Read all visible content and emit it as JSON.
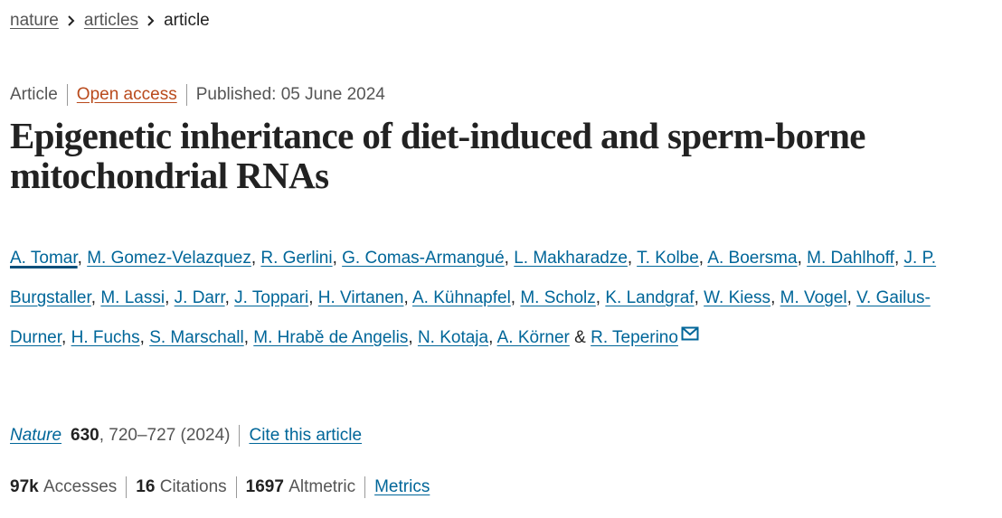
{
  "breadcrumb": [
    "nature",
    "articles",
    "article"
  ],
  "meta": {
    "type": "Article",
    "access": "Open access",
    "published": "Published: 05 June 2024"
  },
  "title": "Epigenetic inheritance of diet-induced and sperm-borne mitochondrial RNAs",
  "authors": {
    "names": [
      "A. Tomar",
      "M. Gomez-Velazquez",
      "R. Gerlini",
      "G. Comas-Armangué",
      "L. Makharadze",
      "T. Kolbe",
      "A. Boersma",
      "M. Dahlhoff",
      "J. P. Burgstaller",
      "M. Lassi",
      "J. Darr",
      "J. Toppari",
      "H. Virtanen",
      "A. Kühnapfel",
      "M. Scholz",
      "K. Landgraf",
      "W. Kiess",
      "M. Vogel",
      "V. Gailus-Durner",
      "H. Fuchs",
      "S. Marschall",
      "M. Hrabě de Angelis",
      "N. Kotaja",
      "A. Körner",
      "R. Teperino"
    ],
    "separator": ",",
    "conjunction": "&"
  },
  "citation": {
    "journal": "Nature",
    "volume": "630",
    "details": ", 720–727 (2024)",
    "cite": "Cite this article"
  },
  "metrics": {
    "accesses": "97k",
    "accesses_label": "Accesses",
    "citations": "16",
    "citations_label": "Citations",
    "altmetric": "1697",
    "altmetric_label": "Altmetric",
    "link": "Metrics"
  }
}
